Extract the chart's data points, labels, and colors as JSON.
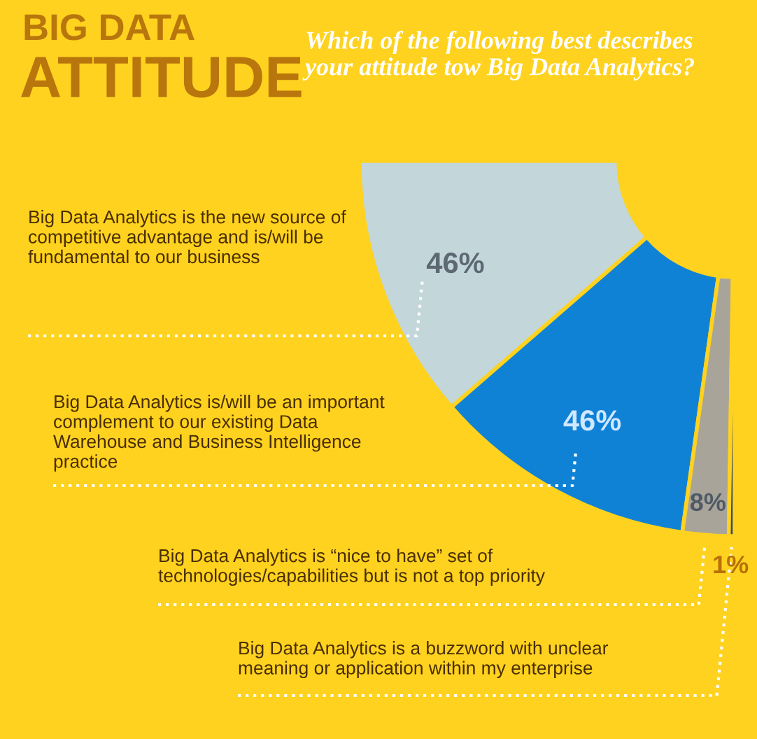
{
  "chart_data": {
    "type": "donut",
    "title": "BIG DATA ATTITUDE",
    "subtitle": "Which of the following best describes your attitude tow Big Data Analytics?",
    "categories": [
      "Big Data Analytics is the new source of competitive advantage and is/will be fundamental to our business",
      "Big Data Analytics is/will be an important complement to our existing Data Warehouse and Business Intelligence practice",
      "Big Data Analytics is “nice to have” set of technologies/capabilities but is not a top priority",
      "Big Data Analytics is a buzzword with unclear meaning or application within my enterprise"
    ],
    "values": [
      46,
      46,
      8,
      1
    ],
    "value_labels": [
      "46%",
      "46%",
      "8%",
      "1%"
    ],
    "colors": [
      "#c3d6da",
      "#0f82d6",
      "#a9a49a",
      "#3b4a5e"
    ],
    "data_labels": true,
    "legend": false
  }
}
